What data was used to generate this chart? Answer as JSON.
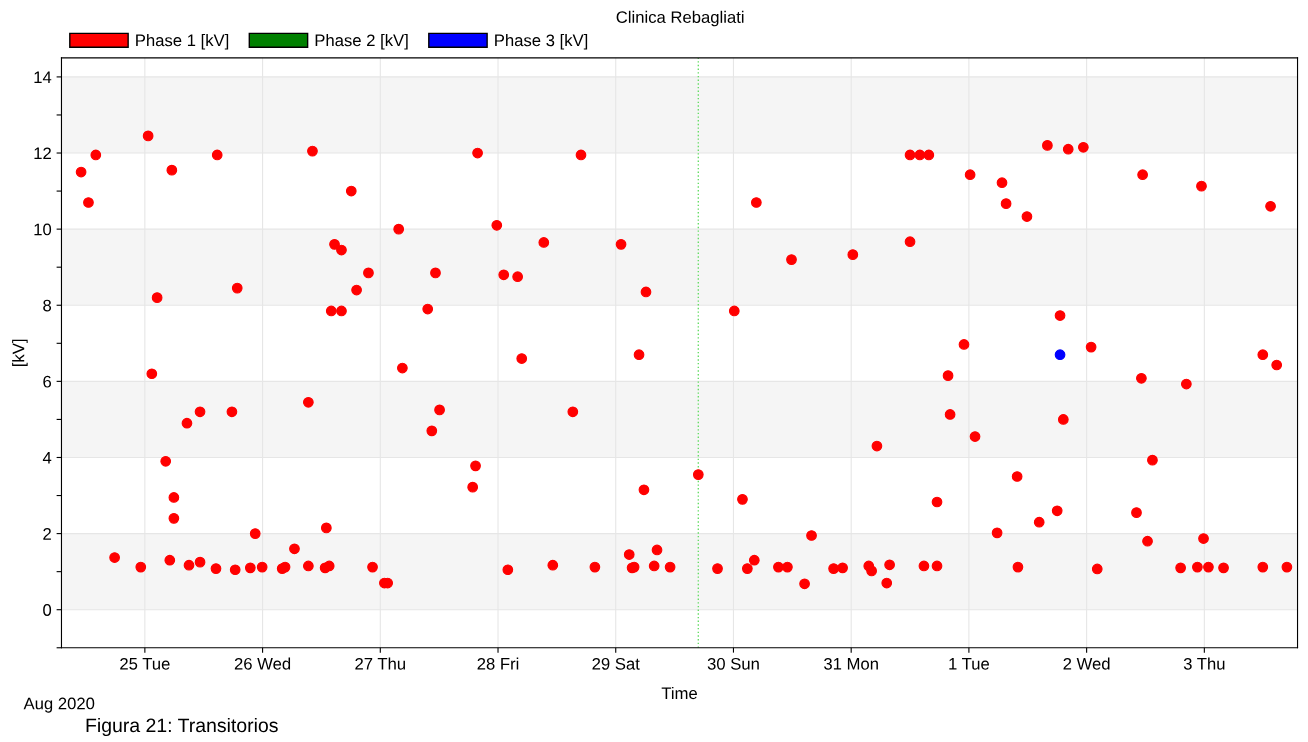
{
  "chart_data": {
    "type": "scatter",
    "title": "Clinica Rebagliati",
    "xlabel": "Time",
    "ylabel": "[kV]",
    "annotations": [
      "Aug 2020",
      "Figura 21: Transitorios"
    ],
    "xlim": [
      "2020-08-24T07:00",
      "2020-09-03T19:00"
    ],
    "xticks": [
      {
        "value": "2020-08-25",
        "label": "25 Tue"
      },
      {
        "value": "2020-08-26",
        "label": "26 Wed"
      },
      {
        "value": "2020-08-27",
        "label": "27 Thu"
      },
      {
        "value": "2020-08-28",
        "label": "28 Fri"
      },
      {
        "value": "2020-08-29",
        "label": "29 Sat"
      },
      {
        "value": "2020-08-30",
        "label": "30 Sun"
      },
      {
        "value": "2020-08-31",
        "label": "31 Mon"
      },
      {
        "value": "2020-09-01",
        "label": "1 Tue"
      },
      {
        "value": "2020-09-02",
        "label": "2 Wed"
      },
      {
        "value": "2020-09-03",
        "label": "3 Thu"
      }
    ],
    "ylim": [
      -1,
      14.5
    ],
    "yticks": [
      {
        "value": -1,
        "label": null
      },
      0,
      {
        "value": 1,
        "label": null
      },
      2,
      {
        "value": 3,
        "label": null
      },
      4,
      {
        "value": 5,
        "label": null
      },
      6,
      {
        "value": 7,
        "label": null
      },
      8,
      {
        "value": 9,
        "label": null
      },
      10,
      {
        "value": 11,
        "label": null
      },
      12,
      {
        "value": 13,
        "label": null
      },
      14
    ],
    "grid": true,
    "legend": "top left",
    "marker": "circle",
    "bands": [
      {
        "axis": "y",
        "from": 0,
        "to": 2,
        "color": "#f5f5f5"
      },
      {
        "axis": "y",
        "from": 4,
        "to": 6,
        "color": "#f5f5f5"
      },
      {
        "axis": "y",
        "from": 8,
        "to": 10,
        "color": "#f5f5f5"
      },
      {
        "axis": "y",
        "from": 12,
        "to": 14,
        "color": "#f5f5f5"
      }
    ],
    "ref_lines": [
      {
        "axis": "x",
        "value": "2020-08-29T16:50",
        "color": "#66dd66",
        "line_style": "dotted"
      }
    ],
    "series": [
      {
        "name": "Phase 1 [kV]",
        "color": "#ff0000",
        "x": [
          "2020-08-24T11:00",
          "2020-08-24T12:30",
          "2020-08-24T14:00",
          "2020-08-24T17:50",
          "2020-08-24T23:10",
          "2020-08-25T00:40",
          "2020-08-25T01:25",
          "2020-08-25T02:30",
          "2020-08-25T04:15",
          "2020-08-25T05:30",
          "2020-08-25T05:05",
          "2020-08-25T05:55",
          "2020-08-25T05:55",
          "2020-08-25T08:35",
          "2020-08-25T09:00",
          "2020-08-25T11:15",
          "2020-08-25T11:15",
          "2020-08-25T14:30",
          "2020-08-25T14:45",
          "2020-08-25T18:25",
          "2020-08-25T17:45",
          "2020-08-25T18:50",
          "2020-08-25T21:30",
          "2020-08-25T22:30",
          "2020-08-25T23:55",
          "2020-08-26T04:00",
          "2020-08-26T04:35",
          "2020-08-26T06:30",
          "2020-08-26T09:20",
          "2020-08-26T09:20",
          "2020-08-26T10:10",
          "2020-08-26T13:00",
          "2020-08-26T12:45",
          "2020-08-26T13:35",
          "2020-08-26T14:00",
          "2020-08-26T14:40",
          "2020-08-26T16:05",
          "2020-08-26T16:05",
          "2020-08-26T18:05",
          "2020-08-26T19:10",
          "2020-08-26T21:35",
          "2020-08-26T22:25",
          "2020-08-27T00:50",
          "2020-08-27T01:30",
          "2020-08-27T03:45",
          "2020-08-27T04:30",
          "2020-08-27T09:40",
          "2020-08-27T10:30",
          "2020-08-27T11:15",
          "2020-08-27T12:05",
          "2020-08-27T18:50",
          "2020-08-27T19:25",
          "2020-08-27T19:50",
          "2020-08-27T23:45",
          "2020-08-28T01:10",
          "2020-08-28T02:00",
          "2020-08-28T04:00",
          "2020-08-28T04:50",
          "2020-08-28T09:20",
          "2020-08-28T11:10",
          "2020-08-28T15:15",
          "2020-08-28T16:55",
          "2020-08-28T19:45",
          "2020-08-29T01:05",
          "2020-08-29T02:45",
          "2020-08-29T03:20",
          "2020-08-29T03:45",
          "2020-08-29T04:45",
          "2020-08-29T05:45",
          "2020-08-29T06:10",
          "2020-08-29T07:50",
          "2020-08-29T08:25",
          "2020-08-29T11:05",
          "2020-08-29T16:50",
          "2020-08-29T20:45",
          "2020-08-30T00:10",
          "2020-08-30T01:50",
          "2020-08-30T02:50",
          "2020-08-30T04:15",
          "2020-08-30T04:40",
          "2020-08-30T09:10",
          "2020-08-30T11:00",
          "2020-08-30T11:50",
          "2020-08-30T14:30",
          "2020-08-30T15:55",
          "2020-08-30T20:25",
          "2020-08-30T22:15",
          "2020-08-31T00:20",
          "2020-08-31T03:35",
          "2020-08-31T04:10",
          "2020-08-31T05:15",
          "2020-08-31T07:15",
          "2020-08-31T07:50",
          "2020-08-31T12:00",
          "2020-08-31T12:00",
          "2020-08-31T14:00",
          "2020-08-31T14:50",
          "2020-08-31T15:50",
          "2020-08-31T17:30",
          "2020-08-31T17:30",
          "2020-08-31T19:45",
          "2020-08-31T20:10",
          "2020-08-31T23:00",
          "2020-09-01T00:15",
          "2020-09-01T01:15",
          "2020-09-01T05:45",
          "2020-09-01T06:45",
          "2020-09-01T07:35",
          "2020-09-01T10:00",
          "2020-09-01T09:50",
          "2020-09-01T11:50",
          "2020-09-01T14:20",
          "2020-09-01T16:00",
          "2020-09-01T18:00",
          "2020-09-01T18:35",
          "2020-09-01T19:15",
          "2020-09-01T20:15",
          "2020-09-01T23:20",
          "2020-09-02T00:55",
          "2020-09-02T02:10",
          "2020-09-02T10:10",
          "2020-09-02T11:10",
          "2020-09-02T11:25",
          "2020-09-02T12:25",
          "2020-09-02T13:25",
          "2020-09-02T19:10",
          "2020-09-02T20:20",
          "2020-09-02T22:35",
          "2020-09-02T23:25",
          "2020-09-02T23:50",
          "2020-09-03T00:50",
          "2020-09-03T03:55",
          "2020-09-03T11:55",
          "2020-09-03T11:55",
          "2020-09-03T13:30",
          "2020-09-03T14:45",
          "2020-09-03T16:50"
        ],
        "values": [
          11.5,
          10.7,
          11.95,
          1.37,
          1.12,
          12.45,
          6.2,
          8.2,
          3.9,
          11.55,
          1.3,
          2.95,
          2.4,
          4.9,
          1.17,
          5.2,
          1.25,
          1.08,
          11.95,
          1.05,
          5.2,
          8.45,
          1.1,
          2.0,
          1.12,
          1.08,
          1.12,
          1.6,
          5.45,
          1.15,
          12.05,
          2.15,
          1.1,
          1.15,
          7.85,
          9.6,
          9.45,
          7.85,
          11.0,
          8.4,
          8.85,
          1.12,
          0.7,
          0.7,
          10.0,
          6.35,
          7.9,
          4.7,
          8.85,
          5.25,
          3.22,
          3.78,
          12.0,
          10.1,
          8.8,
          1.05,
          8.75,
          6.6,
          9.65,
          1.17,
          5.2,
          11.95,
          1.12,
          9.6,
          1.45,
          1.1,
          1.12,
          6.7,
          3.15,
          8.35,
          1.15,
          1.57,
          1.12,
          3.55,
          1.08,
          7.85,
          2.9,
          1.08,
          1.3,
          10.7,
          1.12,
          1.12,
          9.2,
          0.68,
          1.95,
          1.08,
          1.1,
          9.33,
          1.15,
          1.02,
          4.3,
          0.7,
          1.18,
          9.67,
          11.95,
          11.95,
          1.15,
          11.95,
          1.15,
          2.83,
          6.15,
          5.13,
          6.97,
          11.43,
          4.55,
          2.02,
          11.22,
          10.67,
          1.12,
          3.5,
          10.33,
          2.3,
          12.2,
          2.6,
          7.73,
          5.0,
          12.1,
          12.15,
          6.9,
          1.07,
          2.55,
          6.08,
          11.43,
          1.8,
          3.93,
          1.1,
          5.93,
          1.12,
          11.13,
          1.87,
          1.12,
          1.1,
          1.12,
          6.7,
          10.6,
          6.43,
          1.12
        ]
      },
      {
        "name": "Phase 2 [kV]",
        "color": "#008000"
      },
      {
        "name": "Phase 3 [kV]",
        "color": "#0000ff",
        "x": [
          "2020-09-01T18:35"
        ],
        "values": [
          6.7
        ]
      }
    ]
  }
}
